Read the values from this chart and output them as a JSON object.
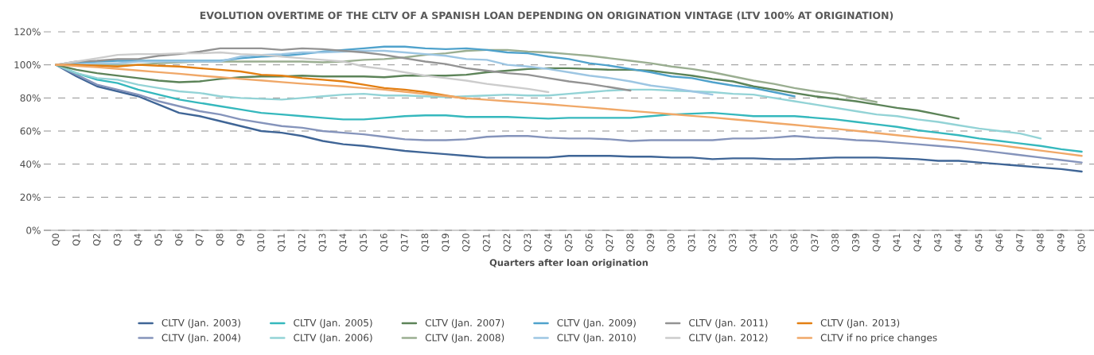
{
  "chart_data": {
    "type": "line",
    "title": "EVOLUTION OVERTIME OF THE CLTV OF A SPANISH LOAN DEPENDING ON ORIGINATION VINTAGE (LTV 100% AT ORIGINATION)",
    "xlabel": "Quarters after loan origination",
    "categories": [
      "Q0",
      "Q1",
      "Q2",
      "Q3",
      "Q4",
      "Q5",
      "Q6",
      "Q7",
      "Q8",
      "Q9",
      "Q10",
      "Q11",
      "Q12",
      "Q13",
      "Q14",
      "Q15",
      "Q16",
      "Q17",
      "Q18",
      "Q19",
      "Q20",
      "Q21",
      "Q22",
      "Q23",
      "Q24",
      "Q25",
      "Q26",
      "Q27",
      "Q28",
      "Q29",
      "Q30",
      "Q31",
      "Q32",
      "Q33",
      "Q34",
      "Q35",
      "Q36",
      "Q37",
      "Q38",
      "Q39",
      "Q40",
      "Q41",
      "Q42",
      "Q43",
      "Q44",
      "Q45",
      "Q46",
      "Q47",
      "Q48",
      "Q49",
      "Q50"
    ],
    "ylim": [
      0,
      120
    ],
    "yticks": [
      {
        "value": 0,
        "label": "0%"
      },
      {
        "value": 20,
        "label": "20%"
      },
      {
        "value": 40,
        "label": "40%"
      },
      {
        "value": 60,
        "label": "60%"
      },
      {
        "value": 80,
        "label": "80%"
      },
      {
        "value": 100,
        "label": "100%"
      },
      {
        "value": 120,
        "label": "120%"
      }
    ],
    "grid": "y",
    "legend": "bottom",
    "series": [
      {
        "name": "CLTV (Jan. 2003)",
        "color": "#3f6596",
        "values": [
          100,
          93,
          87,
          84,
          81,
          76,
          71,
          69,
          66,
          63,
          60,
          59,
          57,
          54,
          52,
          51,
          49.5,
          48,
          47,
          46,
          45,
          44,
          44,
          44,
          44,
          45,
          45,
          45,
          44.5,
          44.5,
          44,
          44,
          43,
          43.5,
          43.5,
          43,
          43,
          43.5,
          44,
          44,
          44,
          43.5,
          43,
          42,
          42,
          41,
          40,
          39,
          38,
          37,
          35.5
        ]
      },
      {
        "name": "CLTV (Jan. 2004)",
        "color": "#8594bb",
        "values": [
          100,
          94,
          88,
          85,
          82,
          78,
          75,
          72,
          70,
          67,
          65,
          63,
          62,
          60,
          59,
          58,
          56.5,
          55,
          54.5,
          54.5,
          55,
          56.5,
          57,
          57,
          56,
          55.5,
          55.5,
          55,
          54,
          54.5,
          54.5,
          54.5,
          54.5,
          55.5,
          55.5,
          56,
          57,
          56,
          55.5,
          54.5,
          54,
          53,
          52,
          51,
          50,
          48.5,
          47,
          45.5,
          44,
          42.5,
          41
        ]
      },
      {
        "name": "CLTV (Jan. 2005)",
        "color": "#35b8bd",
        "values": [
          100,
          95,
          91,
          89,
          85,
          82,
          79,
          77,
          75,
          73,
          71,
          70,
          69,
          68,
          67,
          67,
          68,
          69,
          69.5,
          69.5,
          68.5,
          68.5,
          68.5,
          68,
          67.5,
          68,
          68,
          68,
          68,
          69,
          70,
          70.5,
          71,
          70,
          69,
          69,
          69,
          68,
          67,
          65.5,
          64,
          62.5,
          60.5,
          59,
          57.5,
          55.5,
          54,
          52.5,
          51,
          49,
          47.5
        ]
      },
      {
        "name": "CLTV (Jan. 2006)",
        "color": "#93d3d6",
        "values": [
          100,
          95,
          92,
          91,
          88,
          86,
          84,
          83,
          81,
          80,
          79.5,
          79,
          80,
          81,
          82,
          82.5,
          81.5,
          81.5,
          81,
          80.5,
          81,
          81.5,
          82,
          81.5,
          81.5,
          82.5,
          83.5,
          84.5,
          85,
          85,
          84.5,
          84,
          83.5,
          82.5,
          82,
          80,
          78,
          76,
          74,
          72,
          70,
          69,
          67,
          65.5,
          63.5,
          61.5,
          60,
          58.5,
          55.5,
          null,
          null
        ]
      },
      {
        "name": "CLTV (Jan. 2007)",
        "color": "#5c8358",
        "values": [
          100,
          97,
          95,
          93.5,
          92,
          90.5,
          89.5,
          90,
          91.5,
          92.5,
          93,
          93,
          93.5,
          93,
          93,
          93,
          92.5,
          93.5,
          93.5,
          93.5,
          94,
          95.5,
          96.5,
          97.5,
          98,
          98,
          97.5,
          97,
          97,
          96.5,
          95,
          93.5,
          91.5,
          90,
          87,
          85,
          83,
          81,
          79.5,
          78,
          76,
          74,
          72.5,
          70,
          67.5,
          null,
          null,
          null,
          null,
          null,
          null
        ]
      },
      {
        "name": "CLTV (Jan. 2008)",
        "color": "#9aae91",
        "values": [
          100,
          100,
          100,
          100,
          100,
          101,
          101.5,
          102,
          102,
          102,
          102,
          102,
          102,
          101.5,
          102,
          103,
          103.5,
          104.5,
          106,
          107,
          108.5,
          109,
          109,
          108,
          107.5,
          106.5,
          105.5,
          104,
          102.5,
          101,
          99,
          97.5,
          95.5,
          93,
          90.5,
          88.5,
          86,
          84,
          82.5,
          80,
          77.5,
          null,
          null,
          null,
          null,
          null,
          null,
          null,
          null,
          null,
          null
        ]
      },
      {
        "name": "CLTV (Jan. 2009)",
        "color": "#4fa2cc",
        "values": [
          100,
          101,
          102,
          102.5,
          102.5,
          102.5,
          102.5,
          102.5,
          102.5,
          104,
          105,
          105.5,
          106.5,
          108,
          109,
          110,
          111,
          111,
          110,
          109.5,
          110,
          109,
          107.5,
          107,
          105,
          103.5,
          101,
          99.5,
          97.5,
          95.5,
          93,
          92,
          89.5,
          87.5,
          86,
          83.5,
          81,
          null,
          null,
          null,
          null,
          null,
          null,
          null,
          null,
          null,
          null,
          null,
          null,
          null,
          null
        ]
      },
      {
        "name": "CLTV (Jan. 2010)",
        "color": "#9dc6e3",
        "values": [
          100,
          100.5,
          101,
          101,
          102,
          102,
          102,
          102,
          102,
          105,
          106,
          106.5,
          107.5,
          107.5,
          108,
          108.5,
          108.5,
          107.5,
          106.5,
          105.5,
          103.5,
          103,
          100,
          99,
          97.5,
          95.5,
          93.5,
          92,
          90,
          87.5,
          86,
          84,
          82,
          null,
          null,
          null,
          null,
          null,
          null,
          null,
          null,
          null,
          null,
          null,
          null,
          null,
          null,
          null,
          null,
          null,
          null
        ]
      },
      {
        "name": "CLTV (Jan. 2011)",
        "color": "#939393",
        "values": [
          100,
          102,
          102.5,
          103.5,
          103.5,
          105.5,
          106.5,
          108,
          110,
          110,
          110,
          109,
          110,
          109.5,
          108.5,
          107.5,
          106,
          104,
          102,
          100.5,
          98,
          96.5,
          95,
          94,
          92,
          90,
          88.5,
          86.5,
          84.5,
          null,
          null,
          null,
          null,
          null,
          null,
          null,
          null,
          null,
          null,
          null,
          null,
          null,
          null,
          null,
          null,
          null,
          null,
          null,
          null,
          null,
          null
        ]
      },
      {
        "name": "CLTV (Jan. 2012)",
        "color": "#cccccc",
        "values": [
          100,
          102,
          104,
          106,
          106.5,
          106.5,
          107,
          107,
          107.5,
          106.5,
          106,
          105,
          104,
          103,
          102,
          99,
          97.5,
          95.5,
          93.5,
          92,
          90.5,
          88.5,
          87,
          85.5,
          83.5,
          null,
          null,
          null,
          null,
          null,
          null,
          null,
          null,
          null,
          null,
          null,
          null,
          null,
          null,
          null,
          null,
          null,
          null,
          null,
          null,
          null,
          null,
          null,
          null,
          null,
          null
        ]
      },
      {
        "name": "CLTV (Jan. 2013)",
        "color": "#e37f12",
        "values": [
          100,
          100,
          99.5,
          99,
          100,
          99.5,
          99,
          98,
          97,
          96,
          94,
          93.5,
          92,
          91,
          90,
          88,
          86,
          85,
          83.5,
          81.5,
          79.5,
          null,
          null,
          null,
          null,
          null,
          null,
          null,
          null,
          null,
          null,
          null,
          null,
          null,
          null,
          null,
          null,
          null,
          null,
          null,
          null,
          null,
          null,
          null,
          null,
          null,
          null,
          null,
          null,
          null,
          null
        ]
      },
      {
        "name": "CLTV if no price changes",
        "color": "#f0a868",
        "values": [
          100,
          99.3,
          98.6,
          97.6,
          96.6,
          95.6,
          94.6,
          93.5,
          92.5,
          91.5,
          90.6,
          89.6,
          88.6,
          87.8,
          87,
          86,
          85,
          83.7,
          82.4,
          81.1,
          79.8,
          78.9,
          78,
          77.1,
          76.2,
          75.2,
          74.2,
          73.2,
          72.2,
          71.2,
          70.2,
          69.2,
          68.2,
          67.1,
          66,
          64.8,
          63.7,
          62.5,
          61.4,
          60.1,
          58.8,
          57.5,
          56.2,
          55,
          53.8,
          52.6,
          51.4,
          49.8,
          48.2,
          46.6,
          45
        ]
      }
    ]
  }
}
